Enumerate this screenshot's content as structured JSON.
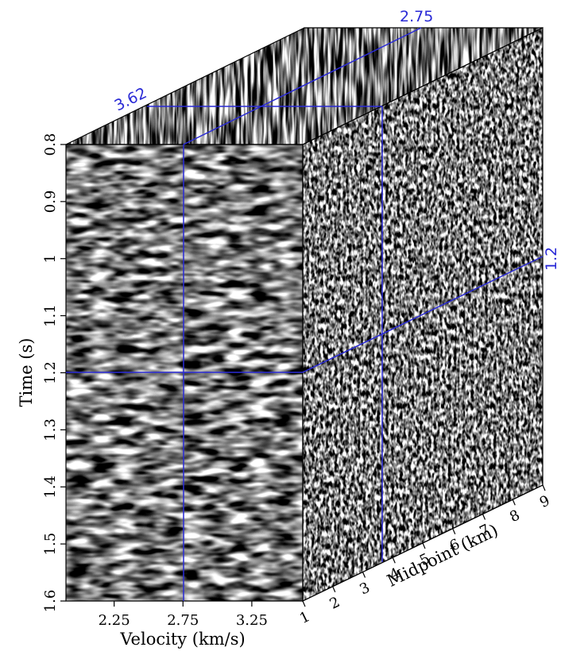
{
  "colors": {
    "slice_line": "#2a2ad6",
    "background": "#ffffff",
    "frame": "#000000"
  },
  "axes": {
    "time": {
      "label": "Time (s)",
      "ticks": [
        "0.8",
        "0.9",
        "1",
        "1.1",
        "1.2",
        "1.3",
        "1.4",
        "1.5",
        "1.6"
      ],
      "range": [
        0.8,
        1.6
      ]
    },
    "velocity": {
      "label": "Velocity (km/s)",
      "ticks": [
        "2.25",
        "2.75",
        "3.25"
      ],
      "tick_values": [
        2.25,
        2.75,
        3.25
      ],
      "range": [
        1.9,
        3.62
      ]
    },
    "midpoint": {
      "label": "Midpoint (km)",
      "ticks": [
        "1",
        "2",
        "3",
        "4",
        "5",
        "6",
        "7",
        "8",
        "9"
      ],
      "range": [
        1,
        9
      ]
    }
  },
  "slices": {
    "velocity": {
      "label": "2.75",
      "value": 2.75
    },
    "time": {
      "label": "1.2",
      "value": 1.2
    },
    "midpoint": {
      "label": "3.62",
      "value": 3.62
    }
  }
}
